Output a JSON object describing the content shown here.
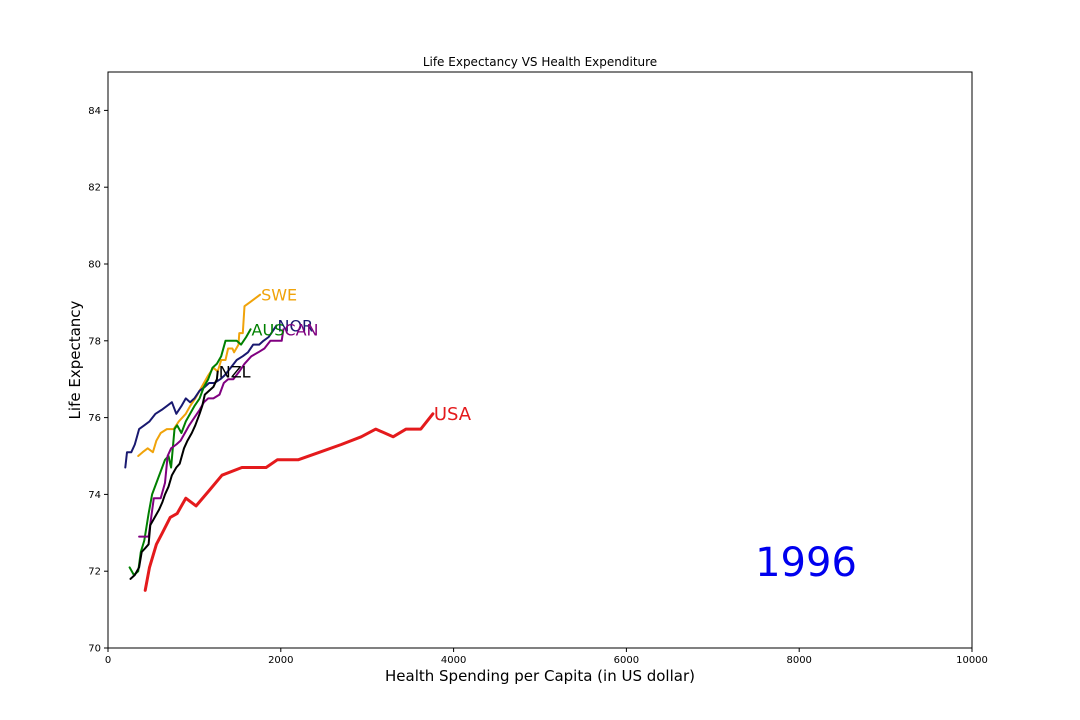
{
  "chart_data": {
    "type": "line",
    "title": "Life Expectancy VS Health Expenditure",
    "xlabel": "Health Spending per Capita (in US dollar)",
    "ylabel": "Life Expectancy",
    "xlim": [
      0,
      10000
    ],
    "ylim": [
      70,
      85
    ],
    "x_ticks": [
      0,
      2000,
      4000,
      6000,
      8000,
      10000
    ],
    "y_ticks": [
      70,
      72,
      74,
      76,
      78,
      80,
      82,
      84
    ],
    "grid": false,
    "year_annotation": "1996",
    "year_color": "#0000ee",
    "series": [
      {
        "name": "SWE",
        "color": "#f0a30a",
        "points": [
          [
            350,
            75.0
          ],
          [
            400,
            75.1
          ],
          [
            460,
            75.2
          ],
          [
            520,
            75.1
          ],
          [
            560,
            75.4
          ],
          [
            610,
            75.6
          ],
          [
            680,
            75.7
          ],
          [
            760,
            75.7
          ],
          [
            820,
            75.9
          ],
          [
            900,
            76.1
          ],
          [
            950,
            76.3
          ],
          [
            1010,
            76.5
          ],
          [
            1060,
            76.7
          ],
          [
            1110,
            76.9
          ],
          [
            1160,
            77.1
          ],
          [
            1220,
            77.3
          ],
          [
            1270,
            77.2
          ],
          [
            1310,
            77.5
          ],
          [
            1360,
            77.5
          ],
          [
            1390,
            77.8
          ],
          [
            1440,
            77.8
          ],
          [
            1460,
            77.7
          ],
          [
            1510,
            77.9
          ],
          [
            1520,
            78.2
          ],
          [
            1560,
            78.2
          ],
          [
            1580,
            78.9
          ],
          [
            1640,
            79.0
          ],
          [
            1700,
            79.1
          ],
          [
            1760,
            79.2
          ]
        ],
        "label_text": "SWE",
        "width": 2
      },
      {
        "name": "NOR",
        "color": "#191970",
        "points": [
          [
            200,
            74.7
          ],
          [
            220,
            75.1
          ],
          [
            270,
            75.1
          ],
          [
            310,
            75.3
          ],
          [
            360,
            75.7
          ],
          [
            420,
            75.8
          ],
          [
            480,
            75.9
          ],
          [
            550,
            76.1
          ],
          [
            620,
            76.2
          ],
          [
            680,
            76.3
          ],
          [
            740,
            76.4
          ],
          [
            790,
            76.1
          ],
          [
            850,
            76.3
          ],
          [
            900,
            76.5
          ],
          [
            950,
            76.4
          ],
          [
            1000,
            76.5
          ],
          [
            1060,
            76.7
          ],
          [
            1120,
            76.8
          ],
          [
            1170,
            76.9
          ],
          [
            1230,
            76.9
          ],
          [
            1300,
            77.0
          ],
          [
            1350,
            77.1
          ],
          [
            1420,
            77.3
          ],
          [
            1490,
            77.5
          ],
          [
            1560,
            77.6
          ],
          [
            1620,
            77.7
          ],
          [
            1680,
            77.9
          ],
          [
            1750,
            77.9
          ],
          [
            1800,
            78.0
          ],
          [
            1860,
            78.1
          ],
          [
            1920,
            78.3
          ],
          [
            1950,
            78.4
          ]
        ],
        "label_text": "NOR",
        "width": 2
      },
      {
        "name": "AUS",
        "color": "#008000",
        "points": [
          [
            250,
            72.1
          ],
          [
            300,
            71.9
          ],
          [
            350,
            72.0
          ],
          [
            380,
            72.5
          ],
          [
            420,
            72.8
          ],
          [
            470,
            73.5
          ],
          [
            510,
            74.0
          ],
          [
            560,
            74.3
          ],
          [
            610,
            74.6
          ],
          [
            660,
            74.9
          ],
          [
            700,
            75.0
          ],
          [
            730,
            74.7
          ],
          [
            770,
            75.7
          ],
          [
            800,
            75.8
          ],
          [
            850,
            75.6
          ],
          [
            900,
            75.9
          ],
          [
            950,
            76.1
          ],
          [
            1000,
            76.3
          ],
          [
            1060,
            76.5
          ],
          [
            1110,
            76.8
          ],
          [
            1160,
            77.0
          ],
          [
            1210,
            77.3
          ],
          [
            1260,
            77.4
          ],
          [
            1310,
            77.6
          ],
          [
            1360,
            78.0
          ],
          [
            1420,
            78.0
          ],
          [
            1490,
            78.0
          ],
          [
            1540,
            77.9
          ],
          [
            1600,
            78.1
          ],
          [
            1650,
            78.3
          ]
        ],
        "label_text": "AUS",
        "width": 2
      },
      {
        "name": "CAN",
        "color": "#800080",
        "points": [
          [
            360,
            72.9
          ],
          [
            470,
            72.9
          ],
          [
            530,
            73.9
          ],
          [
            610,
            73.9
          ],
          [
            660,
            74.3
          ],
          [
            690,
            75.0
          ],
          [
            730,
            75.2
          ],
          [
            790,
            75.3
          ],
          [
            840,
            75.4
          ],
          [
            890,
            75.6
          ],
          [
            940,
            75.8
          ],
          [
            1000,
            76.0
          ],
          [
            1060,
            76.2
          ],
          [
            1110,
            76.4
          ],
          [
            1160,
            76.5
          ],
          [
            1220,
            76.5
          ],
          [
            1290,
            76.6
          ],
          [
            1340,
            76.9
          ],
          [
            1390,
            77.0
          ],
          [
            1450,
            77.0
          ],
          [
            1520,
            77.2
          ],
          [
            1580,
            77.4
          ],
          [
            1660,
            77.6
          ],
          [
            1740,
            77.7
          ],
          [
            1810,
            77.8
          ],
          [
            1880,
            78.0
          ],
          [
            1950,
            78.0
          ],
          [
            2010,
            78.0
          ],
          [
            2030,
            78.3
          ]
        ],
        "label_text": "CAN",
        "width": 2
      },
      {
        "name": "NZL",
        "color": "#000000",
        "points": [
          [
            260,
            71.8
          ],
          [
            310,
            71.9
          ],
          [
            360,
            72.1
          ],
          [
            390,
            72.5
          ],
          [
            430,
            72.6
          ],
          [
            470,
            72.7
          ],
          [
            490,
            73.2
          ],
          [
            540,
            73.4
          ],
          [
            590,
            73.6
          ],
          [
            630,
            73.8
          ],
          [
            660,
            74.0
          ],
          [
            700,
            74.2
          ],
          [
            740,
            74.5
          ],
          [
            790,
            74.7
          ],
          [
            830,
            74.8
          ],
          [
            880,
            75.2
          ],
          [
            920,
            75.4
          ],
          [
            970,
            75.6
          ],
          [
            1010,
            75.8
          ],
          [
            1060,
            76.1
          ],
          [
            1090,
            76.3
          ],
          [
            1120,
            76.6
          ],
          [
            1170,
            76.7
          ],
          [
            1220,
            76.8
          ],
          [
            1260,
            77.0
          ],
          [
            1270,
            77.2
          ]
        ],
        "label_text": "NZL",
        "width": 2
      },
      {
        "name": "USA",
        "color": "#e41a1c",
        "points": [
          [
            430,
            71.5
          ],
          [
            480,
            72.1
          ],
          [
            560,
            72.7
          ],
          [
            630,
            73.0
          ],
          [
            720,
            73.4
          ],
          [
            800,
            73.5
          ],
          [
            900,
            73.9
          ],
          [
            1020,
            73.7
          ],
          [
            1170,
            74.1
          ],
          [
            1320,
            74.5
          ],
          [
            1550,
            74.7
          ],
          [
            1830,
            74.7
          ],
          [
            1960,
            74.9
          ],
          [
            2200,
            74.9
          ],
          [
            2450,
            75.1
          ],
          [
            2700,
            75.3
          ],
          [
            2930,
            75.5
          ],
          [
            3100,
            75.7
          ],
          [
            3300,
            75.5
          ],
          [
            3450,
            75.7
          ],
          [
            3620,
            75.7
          ],
          [
            3760,
            76.1
          ]
        ],
        "label_text": "USA",
        "width": 3
      }
    ]
  }
}
